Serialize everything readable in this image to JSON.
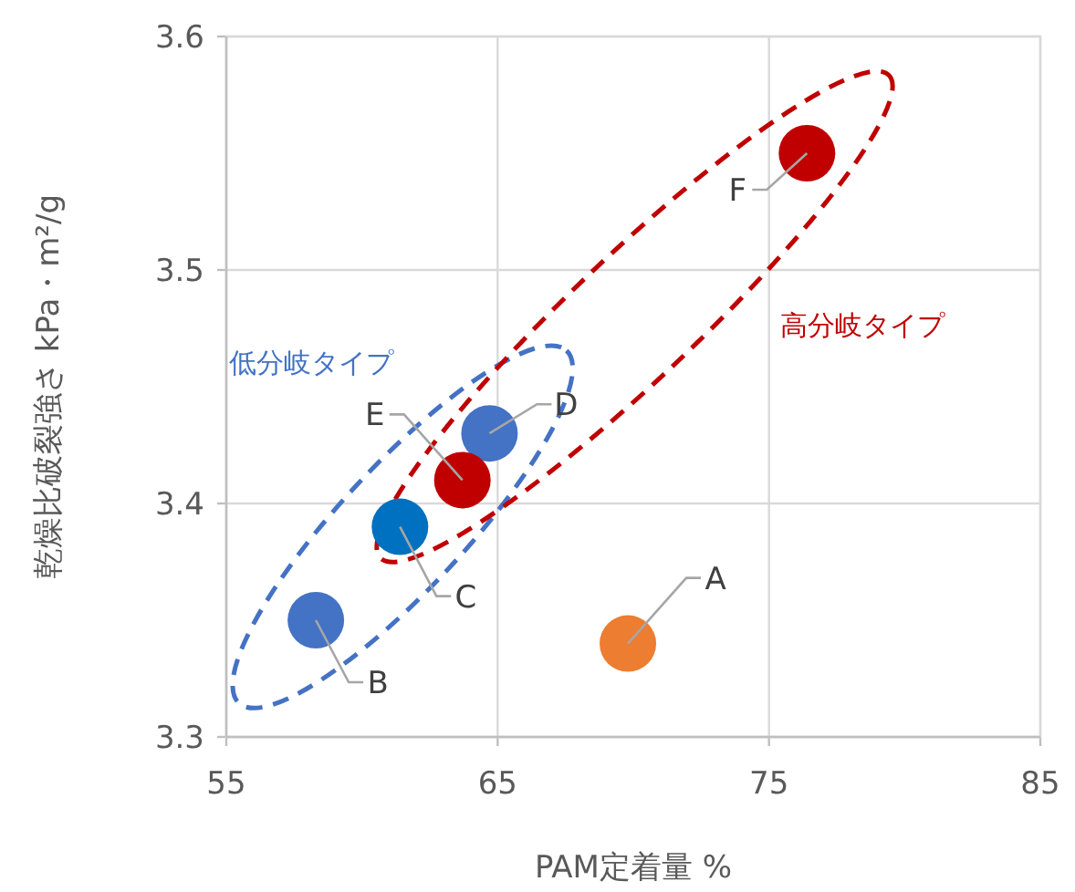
{
  "chart_data": {
    "type": "scatter",
    "xlabel": "PAM定着量 %",
    "ylabel": "乾燥比破裂強さ kPa・m²/g",
    "xlim": [
      55,
      85
    ],
    "xticks": [
      55,
      65,
      75,
      85
    ],
    "ylim": [
      3.3,
      3.6
    ],
    "yticks": [
      3.3,
      3.4,
      3.5,
      3.6
    ],
    "grid": true,
    "marker": "circle",
    "series": [
      {
        "x": [
          58.3,
          61.4,
          64.7
        ],
        "values": [
          3.35,
          3.39,
          3.43
        ],
        "colors": [
          "#4472c4",
          "#0070c0",
          "#4472c4"
        ]
      },
      {
        "x": [
          63.7,
          76.4
        ],
        "values": [
          3.41,
          3.55
        ],
        "colors": [
          "#c00000",
          "#c00000"
        ]
      },
      {
        "x": [
          69.8
        ],
        "values": [
          3.34
        ],
        "colors": [
          "#ed7d31"
        ]
      }
    ],
    "annotations": [
      {
        "text": "A",
        "x": 69.8,
        "y": 3.34
      },
      {
        "text": "B",
        "x": 58.3,
        "y": 3.35
      },
      {
        "text": "C",
        "x": 61.4,
        "y": 3.39
      },
      {
        "text": "D",
        "x": 64.7,
        "y": 3.43
      },
      {
        "text": "E",
        "x": 63.7,
        "y": 3.41
      },
      {
        "text": "F",
        "x": 76.4,
        "y": 3.55
      },
      "低分岐タイプ",
      "高分岐タイプ"
    ]
  }
}
